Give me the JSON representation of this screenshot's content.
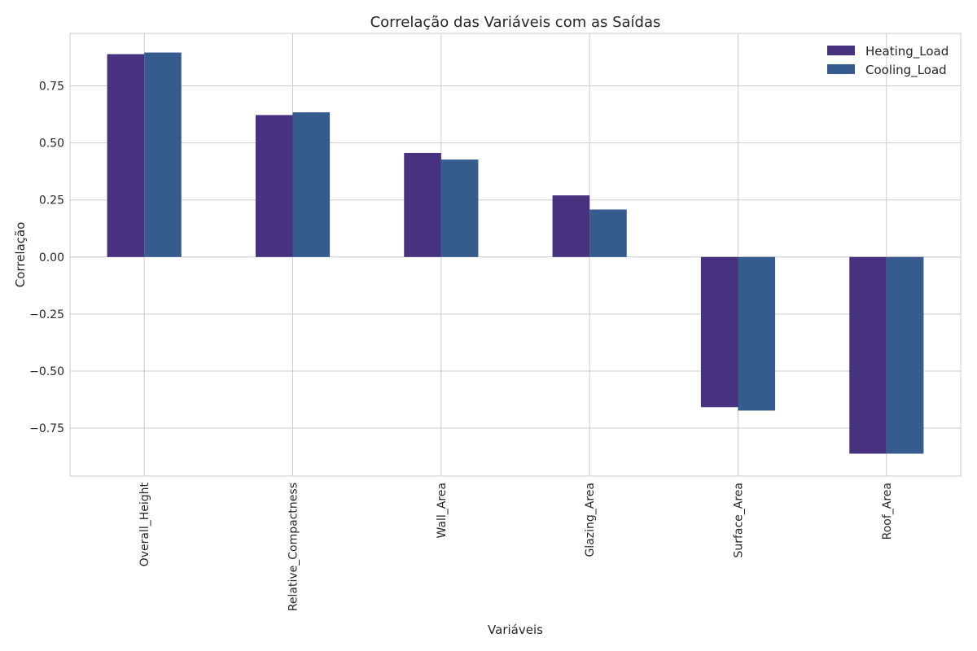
{
  "chart_data": {
    "type": "bar",
    "title": "Correlação das Variáveis com as Saídas",
    "xlabel": "Variáveis",
    "ylabel": "Correlação",
    "categories": [
      "Overall_Height",
      "Relative_Compactness",
      "Wall_Area",
      "Glazing_Area",
      "Surface_Area",
      "Roof_Area"
    ],
    "series": [
      {
        "name": "Heating_Load",
        "color": "#46327e",
        "values": [
          0.889,
          0.622,
          0.456,
          0.27,
          -0.658,
          -0.862
        ]
      },
      {
        "name": "Cooling_Load",
        "color": "#365c8d",
        "values": [
          0.896,
          0.634,
          0.427,
          0.208,
          -0.673,
          -0.862
        ]
      }
    ],
    "ylim": [
      -0.96,
      0.98
    ],
    "yticks": [
      -0.75,
      -0.5,
      -0.25,
      0.0,
      0.25,
      0.5,
      0.75
    ],
    "ytick_labels": [
      "−0.75",
      "−0.50",
      "−0.25",
      "0.00",
      "0.25",
      "0.50",
      "0.75"
    ],
    "grid": true,
    "legend": "top-right"
  }
}
